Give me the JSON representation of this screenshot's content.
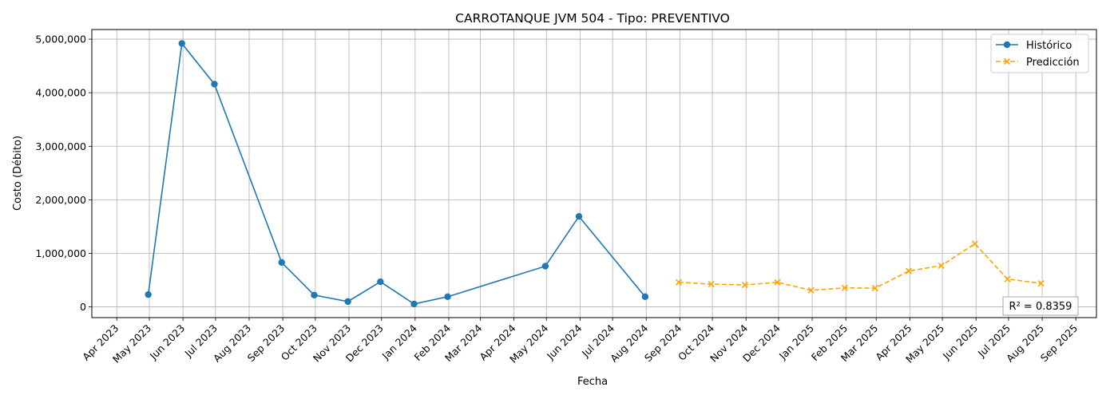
{
  "chart_data": {
    "type": "line",
    "title": "CARROTANQUE JVM 504 - Tipo: PREVENTIVO",
    "xlabel": "Fecha",
    "ylabel": "Costo (Débito)",
    "x_ticks": [
      "Apr 2023",
      "May 2023",
      "Jun 2023",
      "Jul 2023",
      "Aug 2023",
      "Sep 2023",
      "Oct 2023",
      "Nov 2023",
      "Dec 2023",
      "Jan 2024",
      "Feb 2024",
      "Mar 2024",
      "Apr 2024",
      "May 2024",
      "Jun 2024",
      "Jul 2024",
      "Aug 2024",
      "Sep 2024",
      "Oct 2024",
      "Nov 2024",
      "Dec 2024",
      "Jan 2025",
      "Feb 2025",
      "Mar 2025",
      "Apr 2025",
      "May 2025",
      "Jun 2025",
      "Jul 2025",
      "Aug 2025",
      "Sep 2025"
    ],
    "y_ticks": [
      0,
      1000000,
      2000000,
      3000000,
      4000000,
      5000000
    ],
    "y_tick_labels": [
      "0",
      "1,000,000",
      "2,000,000",
      "3,000,000",
      "4,000,000",
      "5,000,000"
    ],
    "ylim": [
      -200000,
      5180000
    ],
    "xlim": [
      "2023-03-09",
      "2025-09-20"
    ],
    "grid": true,
    "legend_position": "top-right",
    "series": [
      {
        "name": "Histórico",
        "color": "#1f77b4",
        "marker": "circle",
        "linestyle": "solid",
        "points": [
          {
            "x": "2023-04-30",
            "y": 230000
          },
          {
            "x": "2023-05-31",
            "y": 4920000
          },
          {
            "x": "2023-06-30",
            "y": 4160000
          },
          {
            "x": "2023-08-31",
            "y": 830000
          },
          {
            "x": "2023-09-30",
            "y": 220000
          },
          {
            "x": "2023-10-31",
            "y": 100000
          },
          {
            "x": "2023-11-30",
            "y": 470000
          },
          {
            "x": "2023-12-31",
            "y": 55000
          },
          {
            "x": "2024-01-31",
            "y": 190000
          },
          {
            "x": "2024-04-30",
            "y": 760000
          },
          {
            "x": "2024-05-31",
            "y": 1690000
          },
          {
            "x": "2024-07-31",
            "y": 190000
          }
        ]
      },
      {
        "name": "Predicción",
        "color": "#ffa500",
        "marker": "x",
        "linestyle": "dashed",
        "points": [
          {
            "x": "2024-08-31",
            "y": 460000
          },
          {
            "x": "2024-09-30",
            "y": 425000
          },
          {
            "x": "2024-10-31",
            "y": 410000
          },
          {
            "x": "2024-11-30",
            "y": 460000
          },
          {
            "x": "2024-12-31",
            "y": 310000
          },
          {
            "x": "2025-01-31",
            "y": 355000
          },
          {
            "x": "2025-02-28",
            "y": 350000
          },
          {
            "x": "2025-03-31",
            "y": 670000
          },
          {
            "x": "2025-04-30",
            "y": 770000
          },
          {
            "x": "2025-05-31",
            "y": 1180000
          },
          {
            "x": "2025-06-30",
            "y": 520000
          },
          {
            "x": "2025-07-31",
            "y": 440000
          }
        ]
      }
    ],
    "annotation": "R² = 0.8359"
  }
}
